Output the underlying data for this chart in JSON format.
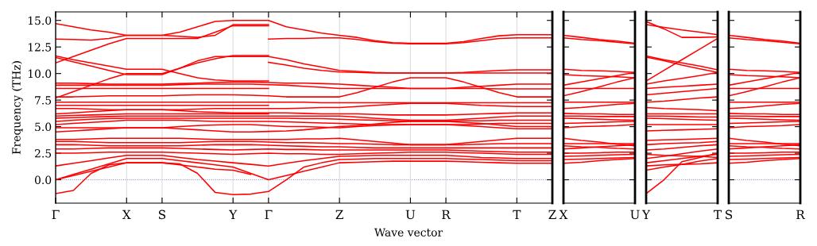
{
  "chart_data": [
    {
      "type": "line",
      "ylabel": "Frequency (THz)",
      "xlabel": "Wave vector",
      "categories": [
        "Γ",
        null,
        null,
        null,
        "X",
        null,
        "S",
        null,
        null,
        null,
        "Y",
        null,
        "Γ",
        null,
        null,
        null,
        "Z",
        null,
        null,
        null,
        "U",
        null,
        "R",
        null,
        null,
        null,
        "T",
        null,
        "Z"
      ],
      "ylim": [
        -2.2,
        15.8
      ],
      "yticks": [
        {
          "value": 0,
          "label": "0.0"
        },
        {
          "value": 2.5,
          "label": "2.5"
        },
        {
          "value": 5,
          "label": "5.0"
        },
        {
          "value": 7.5,
          "label": "7.5"
        },
        {
          "value": 10,
          "label": "10.0"
        },
        {
          "value": 12.5,
          "label": "12.5"
        },
        {
          "value": 15,
          "label": "15.0"
        }
      ],
      "line_style": "solid",
      "marker": "none",
      "grid": "x",
      "ref_lines": [
        {
          "axis": "y",
          "value": 0,
          "color": "#7777dd",
          "line_style": "dotted"
        }
      ],
      "series": [
        {
          "color": "#ff0000",
          "values": [
            14.7,
            14.4,
            14.1,
            13.9,
            13.6,
            13.6,
            13.6,
            13.9,
            14.4,
            14.9,
            15.0,
            15.0,
            15.0,
            14.4,
            14.1,
            13.8,
            13.6,
            13.4,
            13.1,
            12.9,
            12.85,
            12.85,
            12.85,
            13.0,
            13.3,
            13.55,
            13.65,
            13.65,
            13.65
          ]
        },
        {
          "color": "#ff0000",
          "values": [
            13.25,
            13.2,
            13.15,
            13.3,
            13.6,
            13.6,
            13.6,
            13.5,
            13.4,
            13.6,
            14.6,
            14.6,
            14.6,
            null,
            null,
            null,
            null,
            null,
            null,
            null,
            null,
            null,
            null,
            null,
            null,
            null,
            null,
            null,
            null
          ]
        },
        {
          "color": "#ff0000",
          "values": [
            11.0,
            11.6,
            12.2,
            12.8,
            13.3,
            13.3,
            13.3,
            13.3,
            13.3,
            13.9,
            14.5,
            14.5,
            14.5,
            null,
            null,
            null,
            null,
            null,
            null,
            null,
            null,
            null,
            null,
            null,
            null,
            null,
            null,
            null,
            null
          ]
        },
        {
          "color": "#ff0000",
          "values": [
            null,
            null,
            null,
            null,
            null,
            null,
            null,
            null,
            null,
            null,
            null,
            null,
            13.25,
            13.3,
            13.3,
            13.35,
            13.35,
            13.2,
            13.0,
            12.85,
            12.8,
            12.8,
            12.8,
            12.9,
            13.1,
            13.3,
            13.35,
            13.35,
            13.35
          ]
        },
        {
          "color": "#ff0000",
          "values": [
            11.5,
            11.1,
            10.7,
            10.3,
            9.9,
            9.9,
            9.9,
            10.5,
            11.2,
            11.6,
            11.6,
            11.6,
            11.6,
            11.3,
            10.9,
            10.6,
            10.3,
            10.2,
            10.1,
            10.05,
            10.05,
            10.05,
            10.05,
            10.1,
            10.2,
            10.3,
            10.35,
            10.35,
            10.35
          ]
        },
        {
          "color": "#ff0000",
          "values": [
            7.7,
            8.3,
            8.9,
            9.5,
            10.0,
            10.0,
            10.0,
            10.5,
            11.0,
            11.4,
            11.7,
            11.7,
            11.7,
            null,
            null,
            null,
            null,
            null,
            null,
            null,
            null,
            null,
            null,
            null,
            null,
            null,
            null,
            null,
            null
          ]
        },
        {
          "color": "#ff0000",
          "values": [
            null,
            null,
            null,
            null,
            null,
            null,
            null,
            null,
            null,
            null,
            null,
            null,
            11.05,
            10.8,
            10.5,
            10.3,
            10.15,
            10.1,
            10.05,
            10.05,
            10.05,
            10.05,
            10.05,
            10.05,
            10.05,
            10.05,
            10.05,
            10.05,
            10.05
          ]
        },
        {
          "color": "#ff0000",
          "values": [
            11.65,
            11.3,
            11.0,
            10.7,
            10.4,
            10.4,
            10.4,
            10.0,
            9.6,
            9.4,
            9.3,
            9.3,
            9.3,
            null,
            null,
            null,
            null,
            null,
            null,
            null,
            null,
            null,
            null,
            null,
            null,
            null,
            null,
            null,
            null
          ]
        },
        {
          "color": "#ff0000",
          "values": [
            9.1,
            9.1,
            9.05,
            9.0,
            9.0,
            9.0,
            9.0,
            9.05,
            9.1,
            9.15,
            9.2,
            9.2,
            9.15,
            9.1,
            9.1,
            9.05,
            9.0,
            8.9,
            8.8,
            8.7,
            8.6,
            8.6,
            8.6,
            8.7,
            8.8,
            8.9,
            9.0,
            9.0,
            9.0
          ]
        },
        {
          "color": "#ff0000",
          "values": [
            8.9,
            8.9,
            8.9,
            8.9,
            8.9,
            8.9,
            8.9,
            8.95,
            9.0,
            9.0,
            9.0,
            9.0,
            8.95,
            8.9,
            8.8,
            8.7,
            8.6,
            8.6,
            8.6,
            8.6,
            8.6,
            8.6,
            8.6,
            8.6,
            8.6,
            8.55,
            8.55,
            8.55,
            8.55
          ]
        },
        {
          "color": "#ff0000",
          "values": [
            8.6,
            8.6,
            8.6,
            8.6,
            8.6,
            8.6,
            8.6,
            8.6,
            8.6,
            8.6,
            8.6,
            8.6,
            8.6,
            null,
            null,
            null,
            null,
            null,
            null,
            null,
            null,
            null,
            null,
            null,
            null,
            null,
            null,
            null,
            null
          ]
        },
        {
          "color": "#ff0000",
          "values": [
            7.8,
            7.8,
            7.85,
            7.9,
            7.9,
            7.9,
            7.9,
            7.95,
            8.0,
            8.0,
            8.0,
            7.95,
            7.9,
            7.8,
            7.8,
            7.8,
            7.8,
            8.2,
            8.7,
            9.2,
            9.6,
            9.6,
            9.6,
            9.2,
            8.7,
            8.2,
            7.8,
            7.8,
            7.8
          ]
        },
        {
          "color": "#ff0000",
          "values": [
            7.3,
            7.3,
            7.3,
            7.3,
            7.3,
            7.3,
            7.3,
            7.3,
            7.3,
            7.3,
            7.3,
            7.3,
            7.3,
            7.3,
            7.3,
            7.25,
            7.25,
            7.25,
            7.25,
            7.25,
            7.25,
            7.25,
            7.25,
            7.25,
            7.25,
            7.25,
            7.25,
            7.25,
            7.25
          ]
        },
        {
          "color": "#ff0000",
          "values": [
            7.0,
            7.0,
            7.0,
            7.0,
            7.0,
            7.0,
            7.0,
            7.0,
            7.0,
            7.0,
            7.0,
            7.0,
            7.0,
            null,
            null,
            null,
            null,
            null,
            null,
            null,
            null,
            null,
            null,
            null,
            null,
            null,
            null,
            null,
            null
          ]
        },
        {
          "color": "#ff0000",
          "values": [
            6.7,
            6.7,
            6.65,
            6.6,
            6.6,
            6.6,
            6.6,
            6.6,
            6.65,
            6.7,
            6.7,
            6.7,
            6.7,
            6.7,
            6.75,
            6.8,
            6.8,
            6.9,
            7.0,
            7.1,
            7.2,
            7.2,
            7.2,
            7.1,
            7.0,
            6.95,
            6.9,
            6.9,
            6.9
          ]
        },
        {
          "color": "#ff0000",
          "values": [
            6.2,
            6.3,
            6.4,
            6.5,
            6.6,
            6.6,
            6.6,
            6.5,
            6.4,
            6.35,
            6.3,
            6.3,
            6.3,
            6.3,
            6.25,
            6.2,
            6.2,
            6.2,
            6.15,
            6.1,
            6.1,
            6.1,
            6.1,
            6.15,
            6.2,
            6.25,
            6.3,
            6.3,
            6.3
          ]
        },
        {
          "color": "#ff0000",
          "values": [
            6.0,
            6.05,
            6.1,
            6.15,
            6.2,
            6.2,
            6.2,
            6.2,
            6.2,
            6.2,
            6.2,
            6.2,
            6.2,
            null,
            null,
            null,
            null,
            null,
            null,
            null,
            null,
            null,
            null,
            null,
            null,
            null,
            null,
            null,
            null
          ]
        },
        {
          "color": "#ff0000",
          "values": [
            5.8,
            5.85,
            5.9,
            5.95,
            6.0,
            6.0,
            6.0,
            6.0,
            6.0,
            6.0,
            6.0,
            6.0,
            6.0,
            6.0,
            6.0,
            6.0,
            6.0,
            5.9,
            5.8,
            5.7,
            5.6,
            5.6,
            5.6,
            5.7,
            5.8,
            5.9,
            6.0,
            6.0,
            6.0
          ]
        },
        {
          "color": "#ff0000",
          "values": [
            5.5,
            5.6,
            5.7,
            5.75,
            5.8,
            5.8,
            5.8,
            5.8,
            5.8,
            5.8,
            5.8,
            5.8,
            5.8,
            5.8,
            5.75,
            5.75,
            5.7,
            5.65,
            5.6,
            5.55,
            5.5,
            5.5,
            5.5,
            5.55,
            5.55,
            5.6,
            5.6,
            5.6,
            5.6
          ]
        },
        {
          "color": "#ff0000",
          "values": [
            5.2,
            5.3,
            5.4,
            5.5,
            5.6,
            5.6,
            5.6,
            5.6,
            5.55,
            5.5,
            5.5,
            5.5,
            5.5,
            5.45,
            5.4,
            5.35,
            5.3,
            5.25,
            5.2,
            5.2,
            5.2,
            5.2,
            5.2,
            5.2,
            5.25,
            5.3,
            5.3,
            5.3,
            5.3
          ]
        },
        {
          "color": "#ff0000",
          "values": [
            4.9,
            4.9,
            4.9,
            4.9,
            4.9,
            4.9,
            4.9,
            5.0,
            5.1,
            5.15,
            5.2,
            5.2,
            5.1,
            5.0,
            5.0,
            4.95,
            4.9,
            5.0,
            5.1,
            5.15,
            5.2,
            5.2,
            5.2,
            5.1,
            5.0,
            4.9,
            4.8,
            4.8,
            4.8
          ]
        },
        {
          "color": "#ff0000",
          "values": [
            4.5,
            4.6,
            4.7,
            4.8,
            4.9,
            4.9,
            4.9,
            4.8,
            4.7,
            4.6,
            4.5,
            4.5,
            4.55,
            4.6,
            4.7,
            4.85,
            5.0,
            5.1,
            5.25,
            5.4,
            5.5,
            5.5,
            5.5,
            5.4,
            5.3,
            5.15,
            5.0,
            5.0,
            5.0
          ]
        },
        {
          "color": "#ff0000",
          "values": [
            3.8,
            3.8,
            3.85,
            3.9,
            3.9,
            3.9,
            3.9,
            3.9,
            3.85,
            3.8,
            3.8,
            3.8,
            3.8,
            3.8,
            3.85,
            3.85,
            3.9,
            3.75,
            3.6,
            3.45,
            3.3,
            3.3,
            3.3,
            3.45,
            3.6,
            3.75,
            3.9,
            3.9,
            3.9
          ]
        },
        {
          "color": "#ff0000",
          "values": [
            3.6,
            3.6,
            3.55,
            3.5,
            3.5,
            3.5,
            3.5,
            3.5,
            3.55,
            3.6,
            3.6,
            3.6,
            3.55,
            3.5,
            3.5,
            3.45,
            3.4,
            3.4,
            3.35,
            3.3,
            3.3,
            3.3,
            3.3,
            3.3,
            3.35,
            3.4,
            3.4,
            3.4,
            3.4
          ]
        },
        {
          "color": "#ff0000",
          "values": [
            3.3,
            3.3,
            3.25,
            3.2,
            3.2,
            3.2,
            3.2,
            3.2,
            3.25,
            3.3,
            3.3,
            3.3,
            3.25,
            3.2,
            3.15,
            3.1,
            3.1,
            3.05,
            3.0,
            3.0,
            3.0,
            3.0,
            3.0,
            3.0,
            3.0,
            3.0,
            3.0,
            3.0,
            3.0
          ]
        },
        {
          "color": "#ff0000",
          "values": [
            2.9,
            2.9,
            2.95,
            3.0,
            3.0,
            3.0,
            3.0,
            2.95,
            2.9,
            2.85,
            2.8,
            2.85,
            2.9,
            2.85,
            2.85,
            2.8,
            2.8,
            2.8,
            2.8,
            2.8,
            2.8,
            2.8,
            2.8,
            2.75,
            2.7,
            2.65,
            2.6,
            2.6,
            2.6
          ]
        },
        {
          "color": "#ff0000",
          "values": [
            2.5,
            2.5,
            2.55,
            2.6,
            2.6,
            2.6,
            2.6,
            2.55,
            2.5,
            2.45,
            2.4,
            2.45,
            2.5,
            2.45,
            2.45,
            2.4,
            2.4,
            2.45,
            2.5,
            2.55,
            2.6,
            2.6,
            2.6,
            2.55,
            2.5,
            2.45,
            2.4,
            2.4,
            2.4
          ]
        },
        {
          "color": "#ff0000",
          "values": [
            1.3,
            1.55,
            1.8,
            2.05,
            2.3,
            2.3,
            2.3,
            2.1,
            1.9,
            1.75,
            1.6,
            1.45,
            1.3,
            1.55,
            1.8,
            2.0,
            2.2,
            2.25,
            2.3,
            2.3,
            2.3,
            2.3,
            2.3,
            2.2,
            2.1,
            2.05,
            2.0,
            2.0,
            2.0
          ]
        },
        {
          "color": "#ff0000",
          "values": [
            0.0,
            0.5,
            1.0,
            1.5,
            2.0,
            2.0,
            2.0,
            1.8,
            1.6,
            1.4,
            1.2,
            0.6,
            0.0,
            0.4,
            0.8,
            1.2,
            1.6,
            1.65,
            1.7,
            1.75,
            1.75,
            1.75,
            1.75,
            1.7,
            1.65,
            1.6,
            1.55,
            1.55,
            1.55
          ]
        },
        {
          "color": "#ff0000",
          "values": [
            0.0,
            0.4,
            0.8,
            1.2,
            1.6,
            1.6,
            1.6,
            1.4,
            1.2,
            1.0,
            0.9,
            0.5,
            null,
            null,
            null,
            null,
            null,
            null,
            null,
            null,
            null,
            null,
            null,
            null,
            null,
            null,
            null,
            null,
            null
          ]
        },
        {
          "color": "#ff0000",
          "values": [
            -1.3,
            -1.0,
            0.6,
            1.4,
            1.6,
            1.6,
            1.6,
            1.5,
            0.6,
            -1.2,
            -1.4,
            -1.35,
            -1.1,
            0.0,
            1.2,
            1.6,
            1.9,
            1.95,
            2.0,
            2.0,
            2.0,
            2.0,
            2.0,
            1.95,
            1.9,
            1.85,
            1.8,
            1.8,
            1.8
          ]
        }
      ]
    },
    {
      "type": "line",
      "tick_labels": "x",
      "categories": [
        "X",
        null,
        null,
        null,
        "U"
      ],
      "ylim": [
        -2.2,
        15.8
      ],
      "yticks": [
        0,
        2.5,
        5,
        7.5,
        10,
        12.5,
        15
      ],
      "line_style": "solid",
      "marker": "none",
      "ref_lines": [
        {
          "axis": "y",
          "value": 0,
          "color": "#7777dd",
          "line_style": "dotted"
        }
      ],
      "series": [
        {
          "color": "#ff0000",
          "values": [
            13.6,
            13.4,
            13.2,
            13.05,
            12.85
          ]
        },
        {
          "color": "#ff0000",
          "values": [
            13.35,
            13.2,
            13.1,
            12.95,
            12.8
          ]
        },
        {
          "color": "#ff0000",
          "values": [
            10.4,
            10.3,
            10.25,
            10.2,
            10.1
          ]
        },
        {
          "color": "#ff0000",
          "values": [
            9.9,
            9.8,
            9.75,
            9.7,
            9.6
          ]
        },
        {
          "color": "#ff0000",
          "values": [
            8.9,
            9.2,
            9.5,
            9.8,
            10.1
          ]
        },
        {
          "color": "#ff0000",
          "values": [
            8.6,
            8.6,
            8.6,
            8.6,
            8.6
          ]
        },
        {
          "color": "#ff0000",
          "values": [
            7.9,
            8.3,
            8.75,
            9.2,
            9.6
          ]
        },
        {
          "color": "#ff0000",
          "values": [
            7.3,
            7.3,
            7.3,
            7.3,
            7.3
          ]
        },
        {
          "color": "#ff0000",
          "values": [
            6.7,
            6.8,
            6.95,
            7.1,
            7.2
          ]
        },
        {
          "color": "#ff0000",
          "values": [
            6.25,
            6.2,
            6.2,
            6.15,
            6.15
          ]
        },
        {
          "color": "#ff0000",
          "values": [
            6.0,
            6.0,
            5.95,
            5.95,
            5.95
          ]
        },
        {
          "color": "#ff0000",
          "values": [
            5.8,
            5.75,
            5.7,
            5.65,
            5.6
          ]
        },
        {
          "color": "#ff0000",
          "values": [
            5.3,
            5.35,
            5.4,
            5.45,
            5.5
          ]
        },
        {
          "color": "#ff0000",
          "values": [
            4.9,
            5.0,
            5.05,
            5.1,
            5.2
          ]
        },
        {
          "color": "#ff0000",
          "values": [
            3.9,
            3.7,
            3.55,
            3.35,
            3.2
          ]
        },
        {
          "color": "#ff0000",
          "values": [
            3.4,
            3.4,
            3.4,
            3.4,
            3.4
          ]
        },
        {
          "color": "#ff0000",
          "values": [
            3.2,
            3.1,
            3.05,
            2.95,
            2.9
          ]
        },
        {
          "color": "#ff0000",
          "values": [
            2.9,
            3.0,
            3.1,
            3.2,
            3.3
          ]
        },
        {
          "color": "#ff0000",
          "values": [
            2.5,
            2.5,
            2.55,
            2.6,
            2.6
          ]
        },
        {
          "color": "#ff0000",
          "values": [
            2.2,
            2.25,
            2.3,
            2.35,
            2.4
          ]
        },
        {
          "color": "#ff0000",
          "values": [
            1.9,
            1.95,
            2.0,
            2.05,
            2.1
          ]
        },
        {
          "color": "#ff0000",
          "values": [
            1.55,
            1.65,
            1.8,
            1.9,
            2.0
          ]
        }
      ]
    },
    {
      "type": "line",
      "tick_labels": "x",
      "categories": [
        "Y",
        null,
        null,
        null,
        "T"
      ],
      "ylim": [
        -2.2,
        15.8
      ],
      "yticks": [
        0,
        2.5,
        5,
        7.5,
        10,
        12.5,
        15
      ],
      "line_style": "solid",
      "marker": "none",
      "ref_lines": [
        {
          "axis": "y",
          "value": 0,
          "color": "#7777dd",
          "line_style": "dotted"
        }
      ],
      "series": [
        {
          "color": "#ff0000",
          "values": [
            14.9,
            14.2,
            13.4,
            13.4,
            13.45
          ]
        },
        {
          "color": "#ff0000",
          "values": [
            14.6,
            14.35,
            14.1,
            13.9,
            13.65
          ]
        },
        {
          "color": "#ff0000",
          "values": [
            9.3,
            10.3,
            11.3,
            12.3,
            13.3
          ]
        },
        {
          "color": "#ff0000",
          "values": [
            11.65,
            11.3,
            11.0,
            10.7,
            10.35
          ]
        },
        {
          "color": "#ff0000",
          "values": [
            11.55,
            11.2,
            10.8,
            10.45,
            10.1
          ]
        },
        {
          "color": "#ff0000",
          "values": [
            9.0,
            9.3,
            9.55,
            9.8,
            10.1
          ]
        },
        {
          "color": "#ff0000",
          "values": [
            8.6,
            8.7,
            8.8,
            8.9,
            9.0
          ]
        },
        {
          "color": "#ff0000",
          "values": [
            8.0,
            8.15,
            8.3,
            8.45,
            8.6
          ]
        },
        {
          "color": "#ff0000",
          "values": [
            7.3,
            7.4,
            7.55,
            7.7,
            7.8
          ]
        },
        {
          "color": "#ff0000",
          "values": [
            6.8,
            6.7,
            6.65,
            6.6,
            6.5
          ]
        },
        {
          "color": "#ff0000",
          "values": [
            6.2,
            6.2,
            6.2,
            6.2,
            6.2
          ]
        },
        {
          "color": "#ff0000",
          "values": [
            6.0,
            6.0,
            5.95,
            5.9,
            5.9
          ]
        },
        {
          "color": "#ff0000",
          "values": [
            5.8,
            5.75,
            5.7,
            5.65,
            5.6
          ]
        },
        {
          "color": "#ff0000",
          "values": [
            5.2,
            5.2,
            5.2,
            5.2,
            5.2
          ]
        },
        {
          "color": "#ff0000",
          "values": [
            4.6,
            4.65,
            4.7,
            4.75,
            4.8
          ]
        },
        {
          "color": "#ff0000",
          "values": [
            3.7,
            3.75,
            3.8,
            3.85,
            3.9
          ]
        },
        {
          "color": "#ff0000",
          "values": [
            3.3,
            3.4,
            3.45,
            3.5,
            3.6
          ]
        },
        {
          "color": "#ff0000",
          "values": [
            2.8,
            2.9,
            3.05,
            3.2,
            3.3
          ]
        },
        {
          "color": "#ff0000",
          "values": [
            2.4,
            2.3,
            2.25,
            2.2,
            2.1
          ]
        },
        {
          "color": "#ff0000",
          "values": [
            2.0,
            2.2,
            2.45,
            2.7,
            2.9
          ]
        },
        {
          "color": "#ff0000",
          "values": [
            1.6,
            1.8,
            2.0,
            2.2,
            2.4
          ]
        },
        {
          "color": "#ff0000",
          "values": [
            1.3,
            1.4,
            1.45,
            1.5,
            1.6
          ]
        },
        {
          "color": "#ff0000",
          "values": [
            0.9,
            1.2,
            1.45,
            1.75,
            2.0
          ]
        },
        {
          "color": "#ff0000",
          "values": [
            -1.3,
            0.0,
            1.7,
            2.1,
            2.5
          ]
        }
      ]
    },
    {
      "type": "line",
      "tick_labels": "x",
      "categories": [
        "S",
        null,
        null,
        null,
        "R"
      ],
      "ylim": [
        -2.2,
        15.8
      ],
      "yticks": [
        0,
        2.5,
        5,
        7.5,
        10,
        12.5,
        15
      ],
      "line_style": "solid",
      "marker": "none",
      "ref_lines": [
        {
          "axis": "y",
          "value": 0,
          "color": "#7777dd",
          "line_style": "dotted"
        }
      ],
      "series": [
        {
          "color": "#ff0000",
          "values": [
            13.6,
            13.4,
            13.2,
            13.05,
            12.85
          ]
        },
        {
          "color": "#ff0000",
          "values": [
            13.35,
            13.2,
            13.1,
            12.95,
            12.8
          ]
        },
        {
          "color": "#ff0000",
          "values": [
            10.4,
            10.3,
            10.25,
            10.2,
            10.1
          ]
        },
        {
          "color": "#ff0000",
          "values": [
            9.9,
            9.8,
            9.75,
            9.7,
            9.6
          ]
        },
        {
          "color": "#ff0000",
          "values": [
            8.9,
            9.2,
            9.5,
            9.8,
            10.1
          ]
        },
        {
          "color": "#ff0000",
          "values": [
            8.6,
            8.6,
            8.6,
            8.6,
            8.6
          ]
        },
        {
          "color": "#ff0000",
          "values": [
            7.9,
            8.3,
            8.75,
            9.2,
            9.6
          ]
        },
        {
          "color": "#ff0000",
          "values": [
            7.3,
            7.3,
            7.3,
            7.3,
            7.3
          ]
        },
        {
          "color": "#ff0000",
          "values": [
            6.7,
            6.8,
            6.95,
            7.1,
            7.2
          ]
        },
        {
          "color": "#ff0000",
          "values": [
            6.25,
            6.2,
            6.2,
            6.15,
            6.15
          ]
        },
        {
          "color": "#ff0000",
          "values": [
            6.0,
            6.0,
            5.95,
            5.95,
            5.95
          ]
        },
        {
          "color": "#ff0000",
          "values": [
            5.8,
            5.75,
            5.7,
            5.65,
            5.6
          ]
        },
        {
          "color": "#ff0000",
          "values": [
            5.3,
            5.35,
            5.4,
            5.45,
            5.5
          ]
        },
        {
          "color": "#ff0000",
          "values": [
            4.9,
            5.0,
            5.05,
            5.1,
            5.2
          ]
        },
        {
          "color": "#ff0000",
          "values": [
            3.9,
            3.7,
            3.55,
            3.35,
            3.2
          ]
        },
        {
          "color": "#ff0000",
          "values": [
            3.4,
            3.4,
            3.4,
            3.4,
            3.4
          ]
        },
        {
          "color": "#ff0000",
          "values": [
            3.2,
            3.1,
            3.05,
            2.95,
            2.9
          ]
        },
        {
          "color": "#ff0000",
          "values": [
            2.9,
            3.0,
            3.1,
            3.2,
            3.3
          ]
        },
        {
          "color": "#ff0000",
          "values": [
            2.5,
            2.5,
            2.55,
            2.6,
            2.6
          ]
        },
        {
          "color": "#ff0000",
          "values": [
            2.2,
            2.25,
            2.3,
            2.35,
            2.4
          ]
        },
        {
          "color": "#ff0000",
          "values": [
            1.9,
            1.95,
            2.0,
            2.05,
            2.1
          ]
        },
        {
          "color": "#ff0000",
          "values": [
            1.55,
            1.65,
            1.8,
            1.9,
            2.0
          ]
        }
      ]
    }
  ]
}
